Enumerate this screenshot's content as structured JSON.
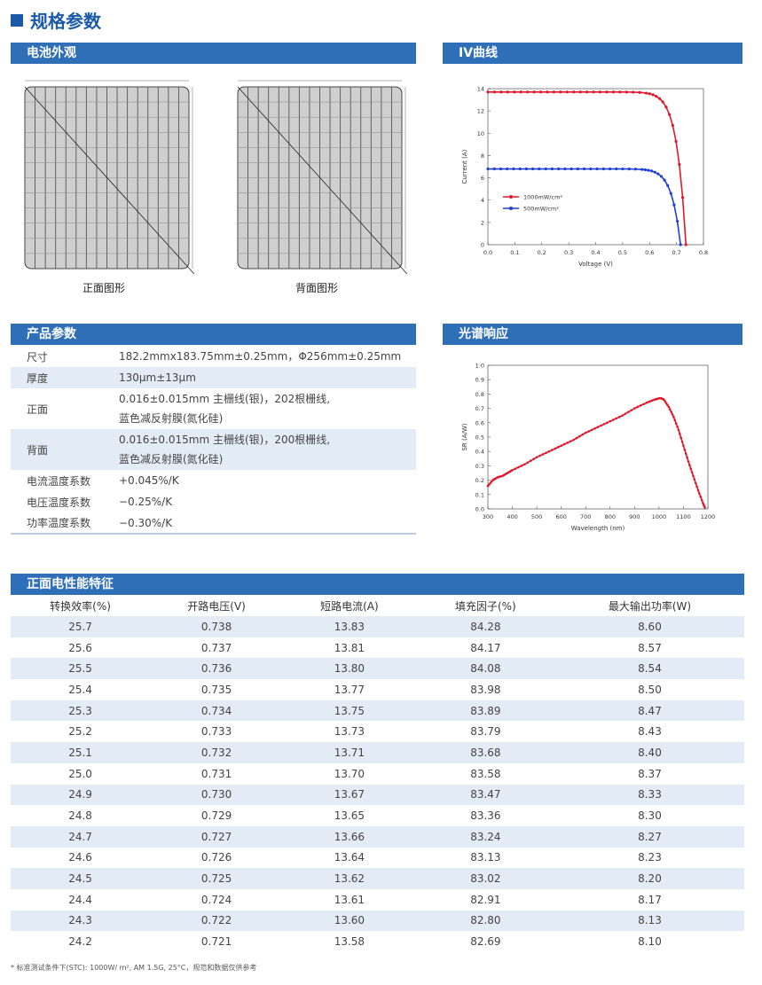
{
  "title": "规格参数",
  "sections": {
    "appearance": "电池外观",
    "iv": "IV曲线",
    "params": "产品参数",
    "spectral": "光谱响应",
    "perf": "正面电性能特征"
  },
  "captions": {
    "front": "正面图形",
    "back": "背面图形"
  },
  "params": [
    {
      "key": "尺寸",
      "lines": [
        "182.2mmx183.75mm±0.25mm，Φ256mm±0.25mm"
      ]
    },
    {
      "key": "厚度",
      "lines": [
        "130μm±13μm"
      ]
    },
    {
      "key": "正面",
      "lines": [
        "0.016±0.015mm 主栅线(银)，202根栅线,",
        "蓝色减反射膜(氮化硅)"
      ]
    },
    {
      "key": "背面",
      "lines": [
        "0.016±0.015mm 主栅线(银)，200根栅线,",
        "蓝色减反射膜(氮化硅)"
      ]
    },
    {
      "key": "电流温度系数",
      "lines": [
        "+0.045%/K"
      ]
    },
    {
      "key": "电压温度系数",
      "lines": [
        "−0.25%/K"
      ]
    },
    {
      "key": "功率温度系数",
      "lines": [
        "−0.30%/K"
      ]
    }
  ],
  "perf": {
    "headers": [
      "转换效率(%)",
      "开路电压(V)",
      "短路电流(A)",
      "填充因子(%)",
      "最大输出功率(W)"
    ],
    "rows": [
      [
        "25.7",
        "0.738",
        "13.83",
        "84.28",
        "8.60"
      ],
      [
        "25.6",
        "0.737",
        "13.81",
        "84.17",
        "8.57"
      ],
      [
        "25.5",
        "0.736",
        "13.80",
        "84.08",
        "8.54"
      ],
      [
        "25.4",
        "0.735",
        "13.77",
        "83.98",
        "8.50"
      ],
      [
        "25.3",
        "0.734",
        "13.75",
        "83.89",
        "8.47"
      ],
      [
        "25.2",
        "0.733",
        "13.73",
        "83.79",
        "8.43"
      ],
      [
        "25.1",
        "0.732",
        "13.71",
        "83.68",
        "8.40"
      ],
      [
        "25.0",
        "0.731",
        "13.70",
        "83.58",
        "8.37"
      ],
      [
        "24.9",
        "0.730",
        "13.67",
        "83.47",
        "8.33"
      ],
      [
        "24.8",
        "0.729",
        "13.65",
        "83.36",
        "8.30"
      ],
      [
        "24.7",
        "0.727",
        "13.66",
        "83.24",
        "8.27"
      ],
      [
        "24.6",
        "0.726",
        "13.64",
        "83.13",
        "8.23"
      ],
      [
        "24.5",
        "0.725",
        "13.62",
        "83.02",
        "8.20"
      ],
      [
        "24.4",
        "0.724",
        "13.61",
        "82.91",
        "8.17"
      ],
      [
        "24.3",
        "0.722",
        "13.60",
        "82.80",
        "8.13"
      ],
      [
        "24.2",
        "0.721",
        "13.58",
        "82.69",
        "8.10"
      ]
    ]
  },
  "note": "* 标准测试条件下(STC): 1000W/ m², AM 1.5G, 25°C，规范和数据仅供参考",
  "chart_data": [
    {
      "type": "line",
      "xlabel": "Voltage (V)",
      "ylabel": "Current (A)",
      "xlim": [
        0,
        0.8
      ],
      "ylim": [
        0,
        14
      ],
      "xticks": [
        "0.0",
        "0.1",
        "0.2",
        "0.3",
        "0.4",
        "0.5",
        "0.6",
        "0.7",
        "0.8"
      ],
      "yticks": [
        "0",
        "2",
        "4",
        "6",
        "8",
        "10",
        "12",
        "14"
      ],
      "legend_position": "center-left",
      "series": [
        {
          "name": "1000mW/cm²",
          "color": "#e0192a",
          "isc": 13.7,
          "voc": 0.735
        },
        {
          "name": "500mW/cm²",
          "color": "#1f3fd6",
          "isc": 6.8,
          "voc": 0.715
        }
      ]
    },
    {
      "type": "line",
      "xlabel": "Wavelength (nm)",
      "ylabel": "SR (A/W)",
      "xlim": [
        300,
        1200
      ],
      "ylim": [
        0,
        1.0
      ],
      "xticks": [
        "300",
        "400",
        "500",
        "600",
        "700",
        "800",
        "900",
        "1000",
        "1100",
        "1200"
      ],
      "yticks": [
        "0.0",
        "0.1",
        "0.2",
        "0.3",
        "0.4",
        "0.5",
        "0.6",
        "0.7",
        "0.8",
        "0.9",
        "1.0"
      ],
      "series": [
        {
          "color": "#e0192a",
          "x": [
            300,
            320,
            340,
            360,
            380,
            400,
            450,
            500,
            550,
            600,
            650,
            700,
            750,
            800,
            850,
            900,
            950,
            980,
            1000,
            1010,
            1020,
            1040,
            1060,
            1080,
            1100,
            1120,
            1140,
            1160,
            1180,
            1190
          ],
          "y": [
            0.16,
            0.2,
            0.22,
            0.23,
            0.25,
            0.27,
            0.31,
            0.36,
            0.4,
            0.44,
            0.48,
            0.53,
            0.57,
            0.61,
            0.65,
            0.7,
            0.74,
            0.76,
            0.77,
            0.77,
            0.76,
            0.71,
            0.64,
            0.55,
            0.44,
            0.33,
            0.23,
            0.13,
            0.04,
            0.0
          ]
        }
      ]
    }
  ]
}
